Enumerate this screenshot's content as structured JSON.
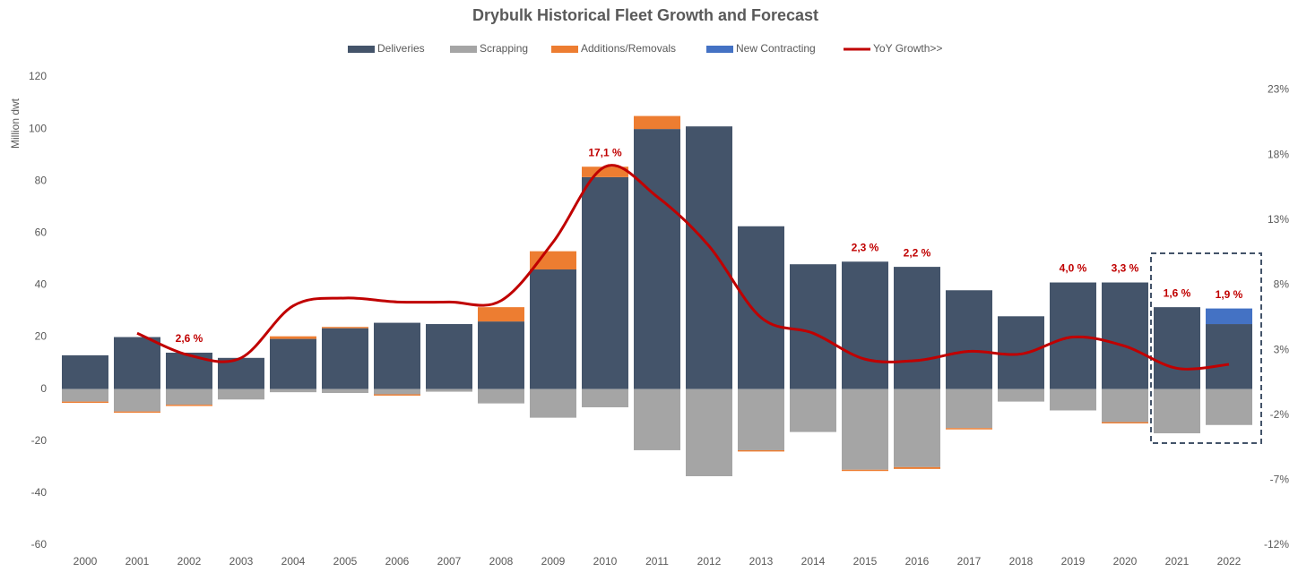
{
  "chart_data": {
    "type": "bar",
    "title": "Drybulk Historical Fleet Growth and Forecast",
    "y_label": "Million dwt",
    "categories": [
      "2000",
      "2001",
      "2002",
      "2003",
      "2004",
      "2005",
      "2006",
      "2007",
      "2008",
      "2009",
      "2010",
      "2011",
      "2012",
      "2013",
      "2014",
      "2015",
      "2016",
      "2017",
      "2018",
      "2019",
      "2020",
      "2021",
      "2022"
    ],
    "ylim": [
      -60,
      120
    ],
    "yticks": [
      -60,
      -40,
      -20,
      0,
      20,
      40,
      60,
      80,
      100,
      120
    ],
    "y2lim": [
      -12,
      24
    ],
    "y2ticks": [
      {
        "value": -12,
        "label": "-12%"
      },
      {
        "value": -7,
        "label": "-7%"
      },
      {
        "value": -2,
        "label": "-2%"
      },
      {
        "value": 3,
        "label": "3%"
      },
      {
        "value": 8,
        "label": "8%"
      },
      {
        "value": 13,
        "label": "13%"
      },
      {
        "value": 18,
        "label": "18%"
      },
      {
        "value": 23,
        "label": "23%"
      }
    ],
    "grid": false,
    "legend": "top",
    "series": [
      {
        "name": "Deliveries",
        "color": "#44546a",
        "values": [
          13,
          20,
          14,
          12,
          19.3,
          23.4,
          25.5,
          25,
          26,
          46,
          81.5,
          100,
          101,
          62.6,
          48,
          49,
          47,
          38,
          28,
          41,
          41,
          31.5,
          25
        ]
      },
      {
        "name": "Scrapping",
        "color": "#a5a5a5",
        "values": [
          -4.8,
          -8.6,
          -6,
          -4,
          -1.2,
          -1.5,
          -2,
          -1,
          -5.5,
          -11,
          -7,
          -23.5,
          -33.5,
          -23.5,
          -16.5,
          -31,
          -30,
          -15,
          -4.8,
          -8.2,
          -12.7,
          -17,
          -13.8
        ]
      },
      {
        "name": "Additions/Removals",
        "color": "#ed7d31",
        "values": [
          -0.5,
          -0.5,
          -0.5,
          null,
          1,
          0.5,
          -0.5,
          null,
          5.5,
          7,
          4,
          5,
          null,
          -0.5,
          null,
          -0.5,
          -0.7,
          -0.5,
          null,
          null,
          -0.5,
          null,
          null
        ]
      },
      {
        "name": "New Contracting",
        "color": "#4472c4",
        "values": [
          null,
          null,
          null,
          null,
          null,
          null,
          null,
          null,
          null,
          null,
          null,
          null,
          null,
          null,
          null,
          null,
          null,
          null,
          null,
          null,
          null,
          null,
          6
        ]
      },
      {
        "name": "YoY Growth>>",
        "type": "line",
        "axis": "y2",
        "color": "#c00000",
        "values": [
          null,
          4.3,
          2.6,
          2.4,
          6.4,
          7.0,
          6.7,
          6.7,
          6.8,
          11.3,
          17.1,
          14.8,
          11,
          5.5,
          4.3,
          2.3,
          2.2,
          2.9,
          2.7,
          4.0,
          3.3,
          1.6,
          1.9
        ],
        "value_labels": [
          null,
          null,
          "2,6 %",
          null,
          null,
          null,
          null,
          null,
          null,
          null,
          "17,1 %",
          null,
          null,
          null,
          null,
          "2,3 %",
          "2,2 %",
          null,
          null,
          "4,0 %",
          "3,3 %",
          "1,6 %",
          "1,9 %"
        ]
      }
    ]
  }
}
